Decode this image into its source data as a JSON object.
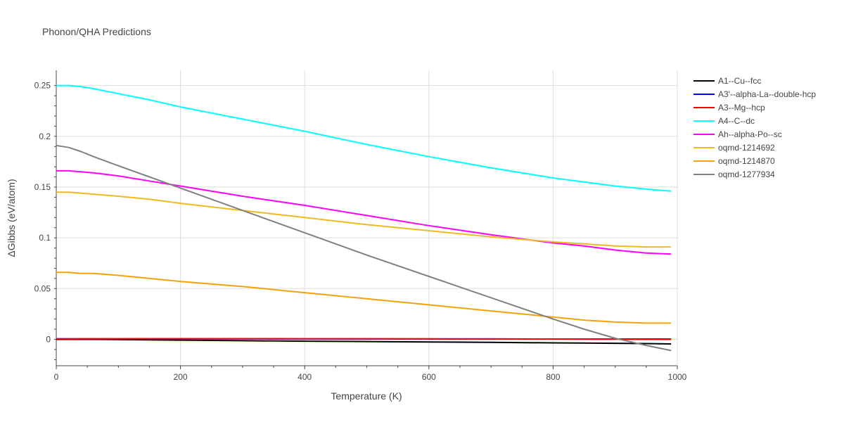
{
  "chart_data": {
    "type": "line",
    "title": "Phonon/QHA Predictions",
    "xlabel": "Temperature (K)",
    "ylabel": "ΔGibbs (eV/atom)",
    "xlim": [
      0,
      1000
    ],
    "ylim": [
      -0.026,
      0.265
    ],
    "xticks": [
      0,
      200,
      400,
      600,
      800,
      1000
    ],
    "yticks": [
      0,
      0.05,
      0.1,
      0.15,
      0.2,
      0.25
    ],
    "xtick_labels": [
      "0",
      "200",
      "400",
      "600",
      "800",
      "1000"
    ],
    "ytick_labels": [
      "0",
      "0.05",
      "0.1",
      "0.15",
      "0.2",
      "0.25"
    ],
    "grid": true,
    "legend_position": "right",
    "x": [
      0,
      20,
      40,
      60,
      100,
      150,
      200,
      300,
      400,
      500,
      600,
      700,
      800,
      850,
      900,
      950,
      990
    ],
    "series": [
      {
        "name": "A1--Cu--fcc",
        "color": "#000000",
        "values": [
          0,
          0,
          0,
          0,
          -0.0002,
          -0.0005,
          -0.0008,
          -0.0013,
          -0.0018,
          -0.0022,
          -0.0026,
          -0.003,
          -0.0035,
          -0.0037,
          -0.0039,
          -0.0042,
          -0.0045
        ]
      },
      {
        "name": "A3'--alpha-La--double-hcp",
        "color": "#0000ff",
        "values": [
          0.0005,
          0.0005,
          0.0005,
          0.0005,
          0.0005,
          0.0005,
          0.0005,
          0.0005,
          0.0004,
          0.0004,
          0.0004,
          0.0004,
          0.0003,
          0.0003,
          0.0003,
          0.0003,
          0.0003
        ]
      },
      {
        "name": "A3--Mg--hcp",
        "color": "#ff0000",
        "values": [
          0.0005,
          0.0005,
          0.0006,
          0.0006,
          0.0006,
          0.0007,
          0.0007,
          0.0007,
          0.0006,
          0.0006,
          0.0005,
          0.0004,
          0.0003,
          0.0002,
          0.0001,
          0.0,
          0.0
        ]
      },
      {
        "name": "A4--C--dc",
        "color": "#00ffff",
        "values": [
          0.25,
          0.25,
          0.249,
          0.247,
          0.242,
          0.236,
          0.229,
          0.217,
          0.205,
          0.192,
          0.18,
          0.169,
          0.159,
          0.155,
          0.151,
          0.148,
          0.146
        ]
      },
      {
        "name": "Ah--alpha-Po--sc",
        "color": "#ff00ff",
        "values": [
          0.166,
          0.166,
          0.165,
          0.164,
          0.161,
          0.156,
          0.151,
          0.141,
          0.132,
          0.122,
          0.112,
          0.103,
          0.095,
          0.092,
          0.088,
          0.085,
          0.084
        ]
      },
      {
        "name": "oqmd-1214692",
        "color": "#eebb22",
        "values": [
          0.145,
          0.145,
          0.144,
          0.143,
          0.141,
          0.138,
          0.134,
          0.127,
          0.12,
          0.113,
          0.107,
          0.101,
          0.096,
          0.094,
          0.092,
          0.091,
          0.091
        ]
      },
      {
        "name": "oqmd-1214870",
        "color": "#f5a20a",
        "values": [
          0.066,
          0.066,
          0.065,
          0.065,
          0.063,
          0.06,
          0.057,
          0.052,
          0.046,
          0.04,
          0.034,
          0.028,
          0.022,
          0.019,
          0.017,
          0.016,
          0.016
        ]
      },
      {
        "name": "oqmd-1277934",
        "color": "#808080",
        "values": [
          0.191,
          0.189,
          0.185,
          0.18,
          0.171,
          0.16,
          0.149,
          0.127,
          0.105,
          0.083,
          0.062,
          0.041,
          0.02,
          0.01,
          0.001,
          -0.006,
          -0.011
        ]
      }
    ]
  }
}
